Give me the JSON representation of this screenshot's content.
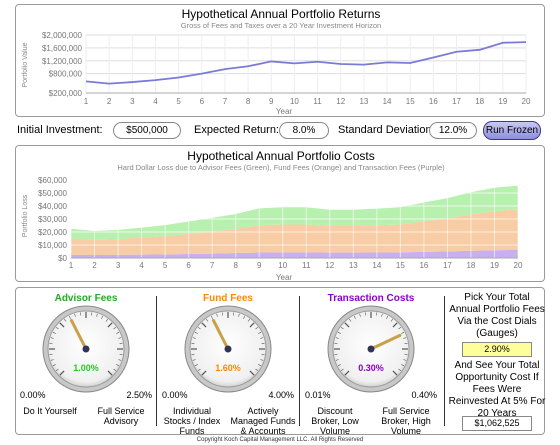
{
  "returns_chart": {
    "title": "Hypothetical Annual Portfolio Returns",
    "subtitle": "Gross of Fees and Taxes over a 20 Year Investment Horizon",
    "ylabel": "Portfolio Value",
    "xlabel": "Year",
    "yticks": [
      "$2,000,000",
      "$1,600,000",
      "$1,200,000",
      "$800,000",
      "$200,000"
    ],
    "xticks": [
      "1",
      "2",
      "3",
      "4",
      "5",
      "6",
      "7",
      "8",
      "9",
      "10",
      "11",
      "12",
      "13",
      "14",
      "15",
      "16",
      "17",
      "18",
      "19",
      "20"
    ],
    "line_color": "#7b7bd6"
  },
  "controls": {
    "initial_label": "Initial Investment:",
    "initial_value": "$500,000",
    "return_label": "Expected Return:",
    "return_value": "8.0%",
    "stddev_label": "Standard Deviation:",
    "stddev_value": "12.0%",
    "run_label": "Run Frozen"
  },
  "costs_chart": {
    "title": "Hypothetical Annual Portfolio Costs",
    "subtitle": "Hard Dollar Loss due to Advisor Fees (Green), Fund Fees (Orange) and Transaction Fees (Purple)",
    "ylabel": "Portfolio Loss",
    "xlabel": "Year",
    "yticks": [
      "$60,000",
      "$50,000",
      "$40,000",
      "$30,000",
      "$20,000",
      "$10,000",
      "$0"
    ],
    "xticks": [
      "1",
      "2",
      "3",
      "4",
      "5",
      "6",
      "7",
      "8",
      "9",
      "10",
      "11",
      "12",
      "13",
      "14",
      "15",
      "16",
      "17",
      "18",
      "19",
      "20"
    ],
    "colors": {
      "advisor": "#b8f0b0",
      "fund": "#f8cca4",
      "transaction": "#c8b0f0"
    }
  },
  "gauges": [
    {
      "title": "Advisor Fees",
      "title_color": "#22aa22",
      "value": "1.00%",
      "value_color": "#22cc22",
      "min": "0.00%",
      "max": "2.50%",
      "left_sub": "Do It Yourself",
      "right_sub": "Full Service Advisory",
      "fraction": 0.4
    },
    {
      "title": "Fund Fees",
      "title_color": "#ff8800",
      "value": "1.60%",
      "value_color": "#ff8800",
      "min": "0.00%",
      "max": "4.00%",
      "left_sub": "Individual Stocks / Index Funds",
      "right_sub": "Actively Managed Funds & Accounts",
      "fraction": 0.4
    },
    {
      "title": "Transaction Costs",
      "title_color": "#8800cc",
      "value": "0.30%",
      "value_color": "#8800cc",
      "min": "0.01%",
      "max": "0.40%",
      "left_sub": "Discount Broker, Low Volume",
      "right_sub": "Full Service Broker, High Volume",
      "fraction": 0.74
    }
  ],
  "side": {
    "pick_text": "Pick Your Total Annual Portfolio Fees Via the Cost Dials (Gauges)",
    "total_fees": "2.90%",
    "see_text": "And See Your Total Opportunity Cost If Fees Were Reinvested At 5% For 20 Years",
    "opportunity_cost": "$1,062,525"
  },
  "chart_data": [
    {
      "type": "line",
      "title": "Hypothetical Annual Portfolio Returns",
      "subtitle": "Gross of Fees and Taxes over a 20 Year Investment Horizon",
      "xlabel": "Year",
      "ylabel": "Portfolio Value",
      "x": [
        1,
        2,
        3,
        4,
        5,
        6,
        7,
        8,
        9,
        10,
        11,
        12,
        13,
        14,
        15,
        16,
        17,
        18,
        19,
        20
      ],
      "series": [
        {
          "values": [
            560000,
            490000,
            540000,
            600000,
            680000,
            800000,
            940000,
            1030000,
            1180000,
            1120000,
            1170000,
            1100000,
            1080000,
            1150000,
            1130000,
            1300000,
            1480000,
            1540000,
            1760000,
            1780000
          ]
        }
      ],
      "ylim": [
        200000,
        2000000
      ]
    },
    {
      "type": "area",
      "title": "Hypothetical Annual Portfolio Costs",
      "subtitle": "Hard Dollar Loss due to Advisor Fees (Green), Fund Fees (Orange) and Transaction Fees (Purple)",
      "xlabel": "Year",
      "ylabel": "Portfolio Loss",
      "x": [
        1,
        2,
        3,
        4,
        5,
        6,
        7,
        8,
        9,
        10,
        11,
        12,
        13,
        14,
        15,
        16,
        17,
        18,
        19,
        20
      ],
      "series": [
        {
          "name": "Transaction Fees (Purple)",
          "values": [
            2500,
            2300,
            2400,
            2600,
            2800,
            3100,
            3400,
            3800,
            4200,
            4300,
            4300,
            4100,
            4100,
            4200,
            4300,
            4700,
            5100,
            5600,
            6000,
            6200
          ]
        },
        {
          "name": "Fund Fees (Orange)",
          "values": [
            12500,
            11500,
            12000,
            13000,
            14000,
            15500,
            17000,
            18500,
            21000,
            21500,
            21500,
            20500,
            20500,
            21000,
            21500,
            23500,
            25500,
            28000,
            30000,
            31000
          ]
        },
        {
          "name": "Advisor Fees (Green)",
          "values": [
            7500,
            7000,
            7200,
            7800,
            8500,
            9500,
            10500,
            11500,
            13000,
            13200,
            13200,
            12500,
            12500,
            12800,
            13200,
            14500,
            15500,
            17000,
            18000,
            18500
          ]
        }
      ],
      "stacked": true,
      "ylim": [
        0,
        60000
      ]
    }
  ]
}
